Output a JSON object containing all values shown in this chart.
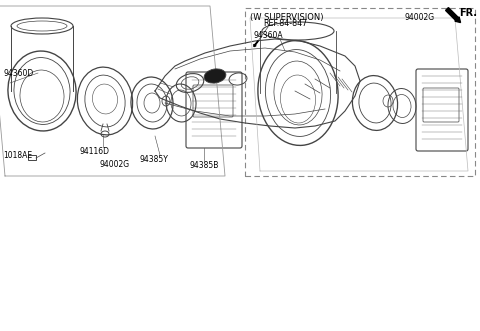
{
  "bg_color": "#ffffff",
  "line_color": "#444444",
  "text_color": "#000000",
  "fs_small": 5.5,
  "fs_ref": 5.8,
  "fs_fr": 7.0,
  "fr_label": "FR.",
  "ref_label": "REF.84-847",
  "part_left": "94002G",
  "part_right": "94002G",
  "supervision": "(W SUPERVISION)",
  "label_1018AE": "1018AE",
  "label_94360D": "94360D",
  "label_94116D": "94116D",
  "label_94385Y": "94385Y",
  "label_94385B": "94385B",
  "label_94360A": "94360A"
}
